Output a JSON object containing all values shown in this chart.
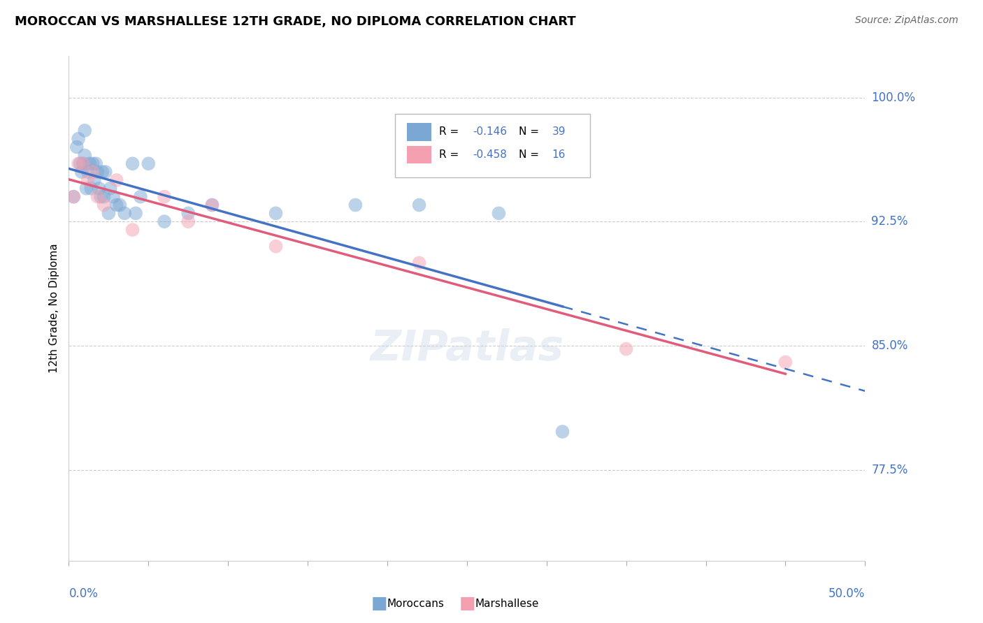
{
  "title": "MOROCCAN VS MARSHALLESE 12TH GRADE, NO DIPLOMA CORRELATION CHART",
  "source": "Source: ZipAtlas.com",
  "ylabel": "12th Grade, No Diploma",
  "xlim": [
    0.0,
    0.5
  ],
  "ylim": [
    0.72,
    1.025
  ],
  "yticks": [
    0.775,
    0.85,
    0.925,
    1.0
  ],
  "ytick_labels": [
    "77.5%",
    "85.0%",
    "92.5%",
    "100.0%"
  ],
  "legend_r_moroccan": "-0.146",
  "legend_n_moroccan": "39",
  "legend_r_marshallese": "-0.458",
  "legend_n_marshallese": "16",
  "color_moroccan": "#7BA7D4",
  "color_marshallese": "#F4A0B0",
  "color_text_blue": "#4472C4",
  "color_regression_moroccan": "#4472C4",
  "color_regression_marshallese": "#E05C7A",
  "moroccan_x": [
    0.003,
    0.005,
    0.006,
    0.007,
    0.008,
    0.009,
    0.01,
    0.01,
    0.011,
    0.012,
    0.013,
    0.014,
    0.015,
    0.016,
    0.017,
    0.018,
    0.019,
    0.02,
    0.021,
    0.022,
    0.023,
    0.025,
    0.026,
    0.028,
    0.03,
    0.032,
    0.035,
    0.04,
    0.042,
    0.045,
    0.05,
    0.06,
    0.075,
    0.09,
    0.13,
    0.18,
    0.22,
    0.27,
    0.31
  ],
  "moroccan_y": [
    0.94,
    0.97,
    0.975,
    0.96,
    0.955,
    0.96,
    0.965,
    0.98,
    0.945,
    0.955,
    0.96,
    0.945,
    0.96,
    0.95,
    0.96,
    0.955,
    0.945,
    0.94,
    0.955,
    0.94,
    0.955,
    0.93,
    0.945,
    0.94,
    0.935,
    0.935,
    0.93,
    0.96,
    0.93,
    0.94,
    0.96,
    0.925,
    0.93,
    0.935,
    0.93,
    0.935,
    0.935,
    0.93,
    0.798
  ],
  "marshallese_x": [
    0.003,
    0.006,
    0.009,
    0.012,
    0.015,
    0.018,
    0.022,
    0.03,
    0.04,
    0.06,
    0.075,
    0.09,
    0.13,
    0.22,
    0.35,
    0.45
  ],
  "marshallese_y": [
    0.94,
    0.96,
    0.96,
    0.95,
    0.955,
    0.94,
    0.935,
    0.95,
    0.92,
    0.94,
    0.925,
    0.935,
    0.91,
    0.9,
    0.848,
    0.84
  ]
}
